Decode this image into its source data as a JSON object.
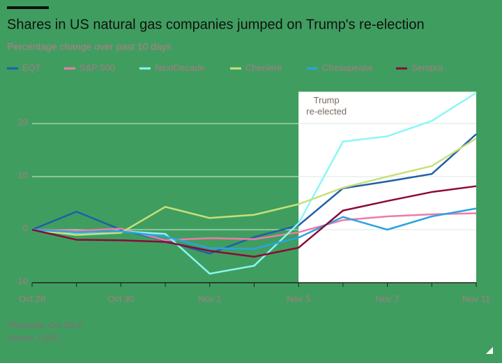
{
  "chart_data": {
    "type": "line",
    "title": "Shares in US natural gas companies jumped on Trump's re-election",
    "subtitle": "Percentage change over past 10 days",
    "categories": [
      "Oct 28",
      null,
      "Oct 30",
      null,
      "Nov 1",
      null,
      "Nov 5",
      null,
      "Nov 7",
      null,
      "Nov 11"
    ],
    "series": [
      {
        "name": "EQT",
        "color": "#1f5fa8",
        "values": [
          0,
          3.4,
          0,
          -2.1,
          -4.5,
          -1.4,
          0.8,
          7.8,
          9.1,
          10.5,
          18.0
        ]
      },
      {
        "name": "S&P 500",
        "color": "#f07aa8",
        "values": [
          0,
          -0.2,
          0.2,
          -2.0,
          -1.6,
          -1.8,
          -0.5,
          1.8,
          2.5,
          2.9,
          3.1
        ]
      },
      {
        "name": "NextDecade",
        "color": "#8af7f5",
        "values": [
          0,
          -0.6,
          -0.3,
          -0.8,
          -8.3,
          -6.8,
          1.2,
          16.6,
          17.6,
          20.5,
          25.8
        ]
      },
      {
        "name": "Cheniere",
        "color": "#c7e07a",
        "values": [
          0,
          -1.0,
          -0.6,
          4.3,
          2.2,
          2.8,
          4.8,
          7.9,
          10.0,
          12.0,
          17.2
        ]
      },
      {
        "name": "Chesapeake",
        "color": "#2aa4e0",
        "values": [
          0,
          -0.5,
          -0.3,
          -1.3,
          -3.5,
          -3.6,
          -1.5,
          2.4,
          0,
          2.5,
          4.0
        ]
      },
      {
        "name": "Sempra",
        "color": "#8a0a3a",
        "values": [
          0,
          -1.9,
          -2.0,
          -2.3,
          -4.0,
          -5.1,
          -3.4,
          3.6,
          5.4,
          7.1,
          8.2
        ]
      }
    ],
    "ylim": [
      -10,
      26
    ],
    "yticks": [
      -10,
      0,
      10,
      20
    ],
    "grid": true,
    "shaded_from": "Nov 5",
    "annotation": [
      "Trump",
      "re-elected"
    ],
    "footnotes": [
      "*Rebased, Oct 28=0",
      "Source: LSEG"
    ]
  }
}
